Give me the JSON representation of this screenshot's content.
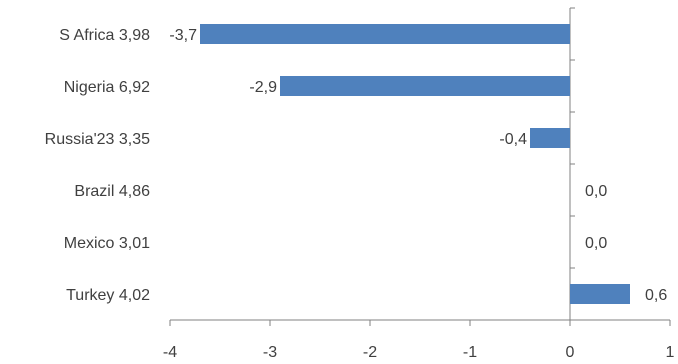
{
  "chart_data": {
    "type": "bar",
    "orientation": "horizontal",
    "categories": [
      "S Africa 3,98",
      "Nigeria 6,92",
      "Russia'23 3,35",
      "Brazil 4,86",
      "Mexico 3,01",
      "Turkey 4,02"
    ],
    "values": [
      -3.7,
      -2.9,
      -0.4,
      0.0,
      0.0,
      0.6
    ],
    "data_labels": [
      "-3,7",
      "-2,9",
      "-0,4",
      "0,0",
      "0,0",
      "0,6"
    ],
    "x_ticks": [
      "-4",
      "-3",
      "-2",
      "-1",
      "0",
      "1"
    ],
    "xlim": [
      -4,
      1
    ],
    "title": "",
    "xlabel": "",
    "ylabel": "",
    "grid": false,
    "legend": "none",
    "colors": {
      "bar": "#4F81BD",
      "axis": "#808080",
      "text": "#404040"
    }
  }
}
